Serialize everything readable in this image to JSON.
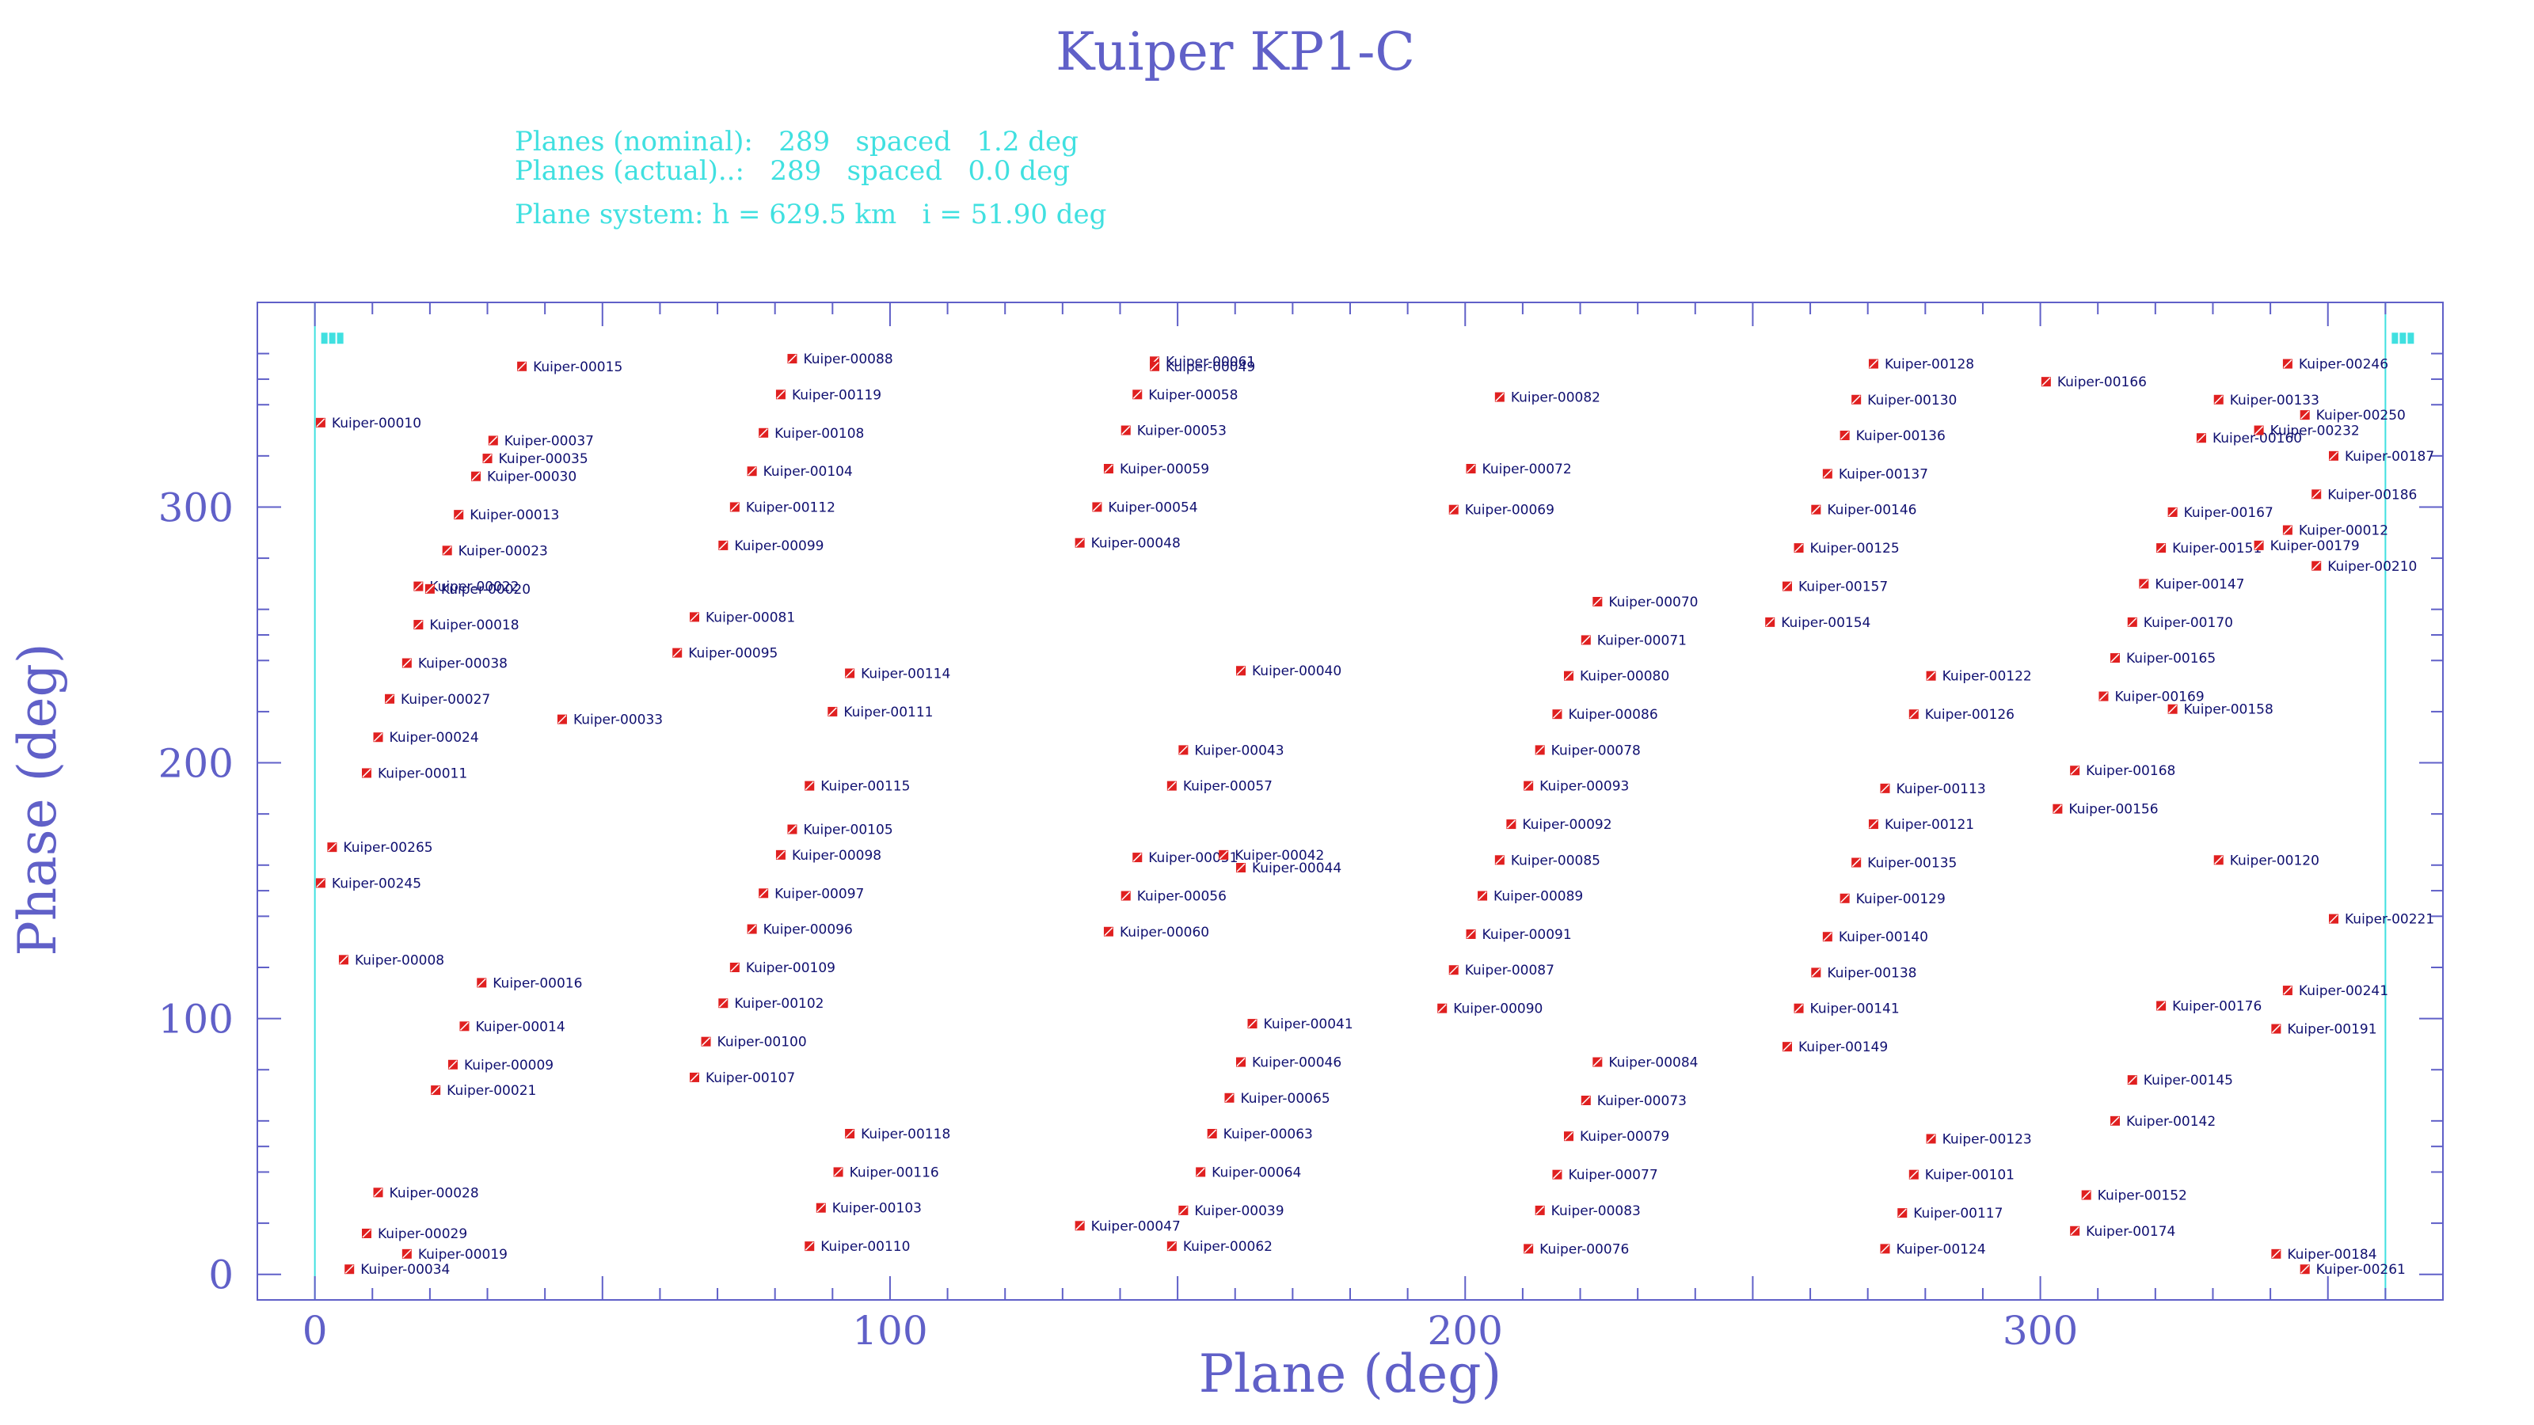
{
  "chart_data": {
    "type": "scatter",
    "title": "Kuiper KP1-C",
    "info": {
      "line1": "Planes (nominal):   289   spaced   1.2 deg",
      "line2": "Planes (actual)..:   289   spaced   0.0 deg",
      "line3": "Plane system: h = 629.5 km   i = 51.90 deg"
    },
    "xlabel": "Plane (deg)",
    "ylabel": "Phase (deg)",
    "xlim": [
      -10,
      370
    ],
    "ylim": [
      -10,
      380
    ],
    "xticks": [
      0,
      100,
      200,
      300
    ],
    "yticks": [
      0,
      100,
      200,
      300
    ],
    "boundaries": [
      0,
      360
    ],
    "marker_color": "#e02020",
    "label_color": "#101070",
    "cyan": "#40e0e0",
    "axis_color": "#6060c8",
    "points": [
      {
        "x": 1,
        "y": 333,
        "label": "Kuiper-00010"
      },
      {
        "x": 3,
        "y": 167,
        "label": "Kuiper-00265"
      },
      {
        "x": 1,
        "y": 153,
        "label": "Kuiper-00245"
      },
      {
        "x": 5,
        "y": 123,
        "label": "Kuiper-00008"
      },
      {
        "x": 6,
        "y": 2,
        "label": "Kuiper-00034"
      },
      {
        "x": 9,
        "y": 16,
        "label": "Kuiper-00029"
      },
      {
        "x": 11,
        "y": 32,
        "label": "Kuiper-00028"
      },
      {
        "x": 9,
        "y": 196,
        "label": "Kuiper-00011"
      },
      {
        "x": 11,
        "y": 210,
        "label": "Kuiper-00024"
      },
      {
        "x": 13,
        "y": 225,
        "label": "Kuiper-00027"
      },
      {
        "x": 16,
        "y": 239,
        "label": "Kuiper-00038"
      },
      {
        "x": 18,
        "y": 254,
        "label": "Kuiper-00018"
      },
      {
        "x": 18,
        "y": 269,
        "label": "Kuiper-00022"
      },
      {
        "x": 20,
        "y": 268,
        "label": "Kuiper-00020"
      },
      {
        "x": 23,
        "y": 283,
        "label": "Kuiper-00023"
      },
      {
        "x": 25,
        "y": 297,
        "label": "Kuiper-00013"
      },
      {
        "x": 28,
        "y": 312,
        "label": "Kuiper-00030"
      },
      {
        "x": 30,
        "y": 319,
        "label": "Kuiper-00035"
      },
      {
        "x": 31,
        "y": 326,
        "label": "Kuiper-00037"
      },
      {
        "x": 36,
        "y": 355,
        "label": "Kuiper-00015"
      },
      {
        "x": 16,
        "y": 8,
        "label": "Kuiper-00019"
      },
      {
        "x": 21,
        "y": 72,
        "label": "Kuiper-00021"
      },
      {
        "x": 24,
        "y": 82,
        "label": "Kuiper-00009"
      },
      {
        "x": 26,
        "y": 97,
        "label": "Kuiper-00014"
      },
      {
        "x": 29,
        "y": 114,
        "label": "Kuiper-00016"
      },
      {
        "x": 43,
        "y": 217,
        "label": "Kuiper-00033"
      },
      {
        "x": 66,
        "y": 257,
        "label": "Kuiper-00081"
      },
      {
        "x": 63,
        "y": 243,
        "label": "Kuiper-00095"
      },
      {
        "x": 71,
        "y": 285,
        "label": "Kuiper-00099"
      },
      {
        "x": 73,
        "y": 300,
        "label": "Kuiper-00112"
      },
      {
        "x": 76,
        "y": 314,
        "label": "Kuiper-00104"
      },
      {
        "x": 78,
        "y": 329,
        "label": "Kuiper-00108"
      },
      {
        "x": 81,
        "y": 344,
        "label": "Kuiper-00119"
      },
      {
        "x": 83,
        "y": 358,
        "label": "Kuiper-00088"
      },
      {
        "x": 66,
        "y": 77,
        "label": "Kuiper-00107"
      },
      {
        "x": 68,
        "y": 91,
        "label": "Kuiper-00100"
      },
      {
        "x": 71,
        "y": 106,
        "label": "Kuiper-00102"
      },
      {
        "x": 73,
        "y": 120,
        "label": "Kuiper-00109"
      },
      {
        "x": 76,
        "y": 135,
        "label": "Kuiper-00096"
      },
      {
        "x": 78,
        "y": 149,
        "label": "Kuiper-00097"
      },
      {
        "x": 81,
        "y": 164,
        "label": "Kuiper-00098"
      },
      {
        "x": 83,
        "y": 174,
        "label": "Kuiper-00105"
      },
      {
        "x": 86,
        "y": 191,
        "label": "Kuiper-00115"
      },
      {
        "x": 90,
        "y": 220,
        "label": "Kuiper-00111"
      },
      {
        "x": 93,
        "y": 235,
        "label": "Kuiper-00114"
      },
      {
        "x": 86,
        "y": 11,
        "label": "Kuiper-00110"
      },
      {
        "x": 88,
        "y": 26,
        "label": "Kuiper-00103"
      },
      {
        "x": 91,
        "y": 40,
        "label": "Kuiper-00116"
      },
      {
        "x": 93,
        "y": 55,
        "label": "Kuiper-00118"
      },
      {
        "x": 133,
        "y": 286,
        "label": "Kuiper-00048"
      },
      {
        "x": 136,
        "y": 300,
        "label": "Kuiper-00054"
      },
      {
        "x": 138,
        "y": 315,
        "label": "Kuiper-00059"
      },
      {
        "x": 141,
        "y": 330,
        "label": "Kuiper-00053"
      },
      {
        "x": 143,
        "y": 344,
        "label": "Kuiper-00058"
      },
      {
        "x": 146,
        "y": 357,
        "label": "Kuiper-00061"
      },
      {
        "x": 146,
        "y": 355,
        "label": "Kuiper-00049"
      },
      {
        "x": 133,
        "y": 19,
        "label": "Kuiper-00047"
      },
      {
        "x": 138,
        "y": 134,
        "label": "Kuiper-00060"
      },
      {
        "x": 141,
        "y": 148,
        "label": "Kuiper-00056"
      },
      {
        "x": 143,
        "y": 163,
        "label": "Kuiper-00051"
      },
      {
        "x": 158,
        "y": 164,
        "label": "Kuiper-00042"
      },
      {
        "x": 161,
        "y": 159,
        "label": "Kuiper-00044"
      },
      {
        "x": 149,
        "y": 191,
        "label": "Kuiper-00057"
      },
      {
        "x": 151,
        "y": 205,
        "label": "Kuiper-00043"
      },
      {
        "x": 161,
        "y": 236,
        "label": "Kuiper-00040"
      },
      {
        "x": 149,
        "y": 11,
        "label": "Kuiper-00062"
      },
      {
        "x": 151,
        "y": 25,
        "label": "Kuiper-00039"
      },
      {
        "x": 154,
        "y": 40,
        "label": "Kuiper-00064"
      },
      {
        "x": 156,
        "y": 55,
        "label": "Kuiper-00063"
      },
      {
        "x": 159,
        "y": 69,
        "label": "Kuiper-00065"
      },
      {
        "x": 161,
        "y": 83,
        "label": "Kuiper-00046"
      },
      {
        "x": 163,
        "y": 98,
        "label": "Kuiper-00041"
      },
      {
        "x": 196,
        "y": 104,
        "label": "Kuiper-00090"
      },
      {
        "x": 198,
        "y": 119,
        "label": "Kuiper-00087"
      },
      {
        "x": 201,
        "y": 133,
        "label": "Kuiper-00091"
      },
      {
        "x": 203,
        "y": 148,
        "label": "Kuiper-00089"
      },
      {
        "x": 206,
        "y": 162,
        "label": "Kuiper-00085"
      },
      {
        "x": 208,
        "y": 176,
        "label": "Kuiper-00092"
      },
      {
        "x": 211,
        "y": 191,
        "label": "Kuiper-00093"
      },
      {
        "x": 213,
        "y": 205,
        "label": "Kuiper-00078"
      },
      {
        "x": 216,
        "y": 219,
        "label": "Kuiper-00086"
      },
      {
        "x": 218,
        "y": 234,
        "label": "Kuiper-00080"
      },
      {
        "x": 221,
        "y": 248,
        "label": "Kuiper-00071"
      },
      {
        "x": 223,
        "y": 263,
        "label": "Kuiper-00070"
      },
      {
        "x": 198,
        "y": 299,
        "label": "Kuiper-00069"
      },
      {
        "x": 201,
        "y": 315,
        "label": "Kuiper-00072"
      },
      {
        "x": 206,
        "y": 343,
        "label": "Kuiper-00082"
      },
      {
        "x": 211,
        "y": 10,
        "label": "Kuiper-00076"
      },
      {
        "x": 213,
        "y": 25,
        "label": "Kuiper-00083"
      },
      {
        "x": 216,
        "y": 39,
        "label": "Kuiper-00077"
      },
      {
        "x": 218,
        "y": 54,
        "label": "Kuiper-00079"
      },
      {
        "x": 221,
        "y": 68,
        "label": "Kuiper-00073"
      },
      {
        "x": 223,
        "y": 83,
        "label": "Kuiper-00084"
      },
      {
        "x": 253,
        "y": 255,
        "label": "Kuiper-00154"
      },
      {
        "x": 256,
        "y": 269,
        "label": "Kuiper-00157"
      },
      {
        "x": 258,
        "y": 284,
        "label": "Kuiper-00125"
      },
      {
        "x": 261,
        "y": 299,
        "label": "Kuiper-00146"
      },
      {
        "x": 263,
        "y": 313,
        "label": "Kuiper-00137"
      },
      {
        "x": 266,
        "y": 328,
        "label": "Kuiper-00136"
      },
      {
        "x": 268,
        "y": 342,
        "label": "Kuiper-00130"
      },
      {
        "x": 271,
        "y": 356,
        "label": "Kuiper-00128"
      },
      {
        "x": 256,
        "y": 89,
        "label": "Kuiper-00149"
      },
      {
        "x": 258,
        "y": 104,
        "label": "Kuiper-00141"
      },
      {
        "x": 261,
        "y": 118,
        "label": "Kuiper-00138"
      },
      {
        "x": 263,
        "y": 132,
        "label": "Kuiper-00140"
      },
      {
        "x": 266,
        "y": 147,
        "label": "Kuiper-00129"
      },
      {
        "x": 268,
        "y": 161,
        "label": "Kuiper-00135"
      },
      {
        "x": 271,
        "y": 176,
        "label": "Kuiper-00121"
      },
      {
        "x": 273,
        "y": 190,
        "label": "Kuiper-00113"
      },
      {
        "x": 278,
        "y": 219,
        "label": "Kuiper-00126"
      },
      {
        "x": 281,
        "y": 234,
        "label": "Kuiper-00122"
      },
      {
        "x": 301,
        "y": 349,
        "label": "Kuiper-00166"
      },
      {
        "x": 273,
        "y": 10,
        "label": "Kuiper-00124"
      },
      {
        "x": 276,
        "y": 24,
        "label": "Kuiper-00117"
      },
      {
        "x": 278,
        "y": 39,
        "label": "Kuiper-00101"
      },
      {
        "x": 281,
        "y": 53,
        "label": "Kuiper-00123"
      },
      {
        "x": 303,
        "y": 182,
        "label": "Kuiper-00156"
      },
      {
        "x": 306,
        "y": 197,
        "label": "Kuiper-00168"
      },
      {
        "x": 311,
        "y": 226,
        "label": "Kuiper-00169"
      },
      {
        "x": 313,
        "y": 241,
        "label": "Kuiper-00165"
      },
      {
        "x": 316,
        "y": 255,
        "label": "Kuiper-00170"
      },
      {
        "x": 318,
        "y": 270,
        "label": "Kuiper-00147"
      },
      {
        "x": 321,
        "y": 284,
        "label": "Kuiper-00151"
      },
      {
        "x": 323,
        "y": 298,
        "label": "Kuiper-00167"
      },
      {
        "x": 328,
        "y": 327,
        "label": "Kuiper-00160"
      },
      {
        "x": 331,
        "y": 342,
        "label": "Kuiper-00133"
      },
      {
        "x": 343,
        "y": 356,
        "label": "Kuiper-00246"
      },
      {
        "x": 323,
        "y": 221,
        "label": "Kuiper-00158"
      },
      {
        "x": 331,
        "y": 162,
        "label": "Kuiper-00120"
      },
      {
        "x": 321,
        "y": 105,
        "label": "Kuiper-00176"
      },
      {
        "x": 306,
        "y": 17,
        "label": "Kuiper-00174"
      },
      {
        "x": 308,
        "y": 31,
        "label": "Kuiper-00152"
      },
      {
        "x": 313,
        "y": 60,
        "label": "Kuiper-00142"
      },
      {
        "x": 316,
        "y": 76,
        "label": "Kuiper-00145"
      },
      {
        "x": 346,
        "y": 336,
        "label": "Kuiper-00250"
      },
      {
        "x": 338,
        "y": 330,
        "label": "Kuiper-00232"
      },
      {
        "x": 351,
        "y": 320,
        "label": "Kuiper-00187"
      },
      {
        "x": 348,
        "y": 305,
        "label": "Kuiper-00186"
      },
      {
        "x": 343,
        "y": 291,
        "label": "Kuiper-00012"
      },
      {
        "x": 338,
        "y": 285,
        "label": "Kuiper-00179"
      },
      {
        "x": 348,
        "y": 277,
        "label": "Kuiper-00210"
      },
      {
        "x": 351,
        "y": 139,
        "label": "Kuiper-00221"
      },
      {
        "x": 343,
        "y": 111,
        "label": "Kuiper-00241"
      },
      {
        "x": 341,
        "y": 96,
        "label": "Kuiper-00191"
      },
      {
        "x": 341,
        "y": 8,
        "label": "Kuiper-00184"
      },
      {
        "x": 346,
        "y": 2,
        "label": "Kuiper-00261"
      }
    ]
  }
}
